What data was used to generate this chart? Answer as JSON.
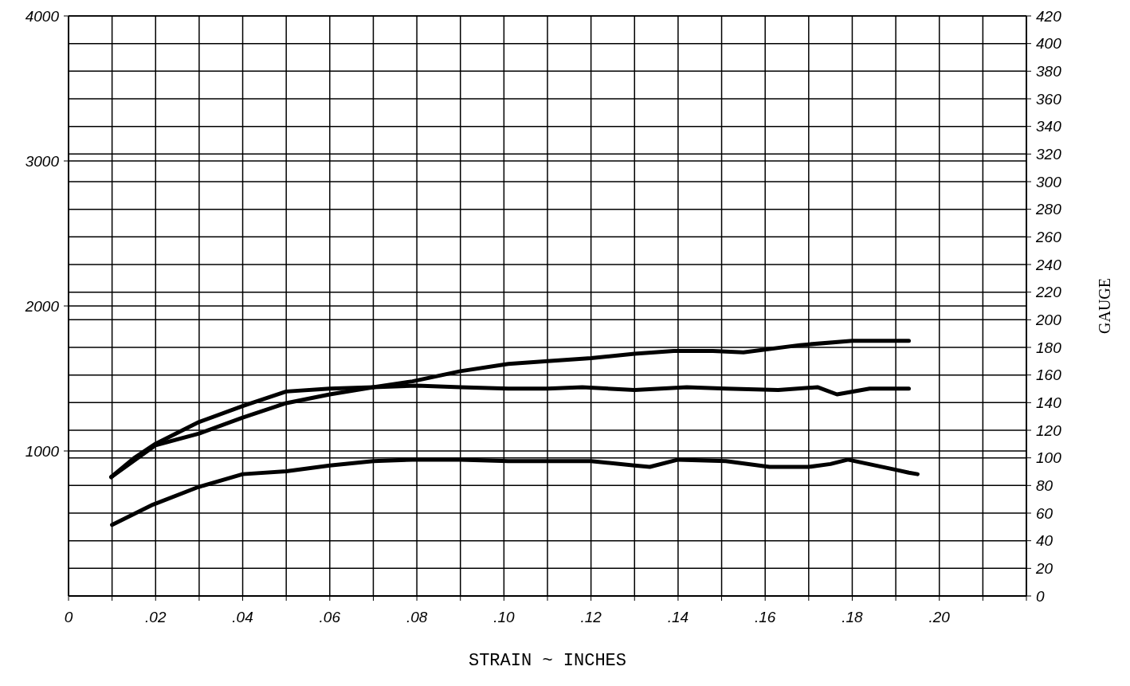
{
  "chart_data": {
    "type": "line",
    "xlabel": "STRAIN ~ INCHES",
    "y2label": "GAUGE",
    "xlim": [
      0,
      0.22
    ],
    "xticks": [
      {
        "value": 0,
        "label": "0"
      },
      {
        "value": 0.01,
        "label": null
      },
      {
        "value": 0.02,
        "label": ".02"
      },
      {
        "value": 0.03,
        "label": null
      },
      {
        "value": 0.04,
        "label": ".04"
      },
      {
        "value": 0.05,
        "label": null
      },
      {
        "value": 0.06,
        "label": ".06"
      },
      {
        "value": 0.07,
        "label": null
      },
      {
        "value": 0.08,
        "label": ".08"
      },
      {
        "value": 0.09,
        "label": null
      },
      {
        "value": 0.1,
        "label": ".10"
      },
      {
        "value": 0.11,
        "label": null
      },
      {
        "value": 0.12,
        "label": ".12"
      },
      {
        "value": 0.13,
        "label": null
      },
      {
        "value": 0.14,
        "label": ".14"
      },
      {
        "value": 0.15,
        "label": null
      },
      {
        "value": 0.16,
        "label": ".16"
      },
      {
        "value": 0.17,
        "label": null
      },
      {
        "value": 0.18,
        "label": ".18"
      },
      {
        "value": 0.19,
        "label": null
      },
      {
        "value": 0.2,
        "label": ".20"
      },
      {
        "value": 0.21,
        "label": null
      },
      {
        "value": 0.22,
        "label": null
      }
    ],
    "ylim": [
      0,
      4000
    ],
    "yticks": [
      1000,
      2000,
      3000,
      4000
    ],
    "y2lim": [
      0,
      420
    ],
    "y2ticks": [
      0,
      20,
      40,
      60,
      80,
      100,
      120,
      140,
      160,
      180,
      200,
      220,
      240,
      260,
      280,
      300,
      320,
      340,
      360,
      380,
      400,
      420
    ],
    "grid": true,
    "legend": false,
    "marker": "none",
    "line_style": "solid",
    "series": [
      {
        "color": "#000000",
        "x": [
          0.0098,
          0.02,
          0.03,
          0.04,
          0.05,
          0.06,
          0.07,
          0.079,
          0.09,
          0.101,
          0.11,
          0.12,
          0.13,
          0.139,
          0.148,
          0.155,
          0.168,
          0.18,
          0.193
        ],
        "values": [
          820,
          1040,
          1120,
          1230,
          1330,
          1390,
          1440,
          1480,
          1550,
          1600,
          1620,
          1640,
          1670,
          1690,
          1690,
          1680,
          1730,
          1760,
          1760
        ]
      },
      {
        "color": "#000000",
        "x": [
          0.0098,
          0.015,
          0.02,
          0.03,
          0.04,
          0.05,
          0.06,
          0.07,
          0.08,
          0.09,
          0.101,
          0.11,
          0.118,
          0.13,
          0.142,
          0.151,
          0.163,
          0.172,
          0.1765,
          0.184,
          0.193
        ],
        "values": [
          820,
          950,
          1050,
          1200,
          1310,
          1410,
          1430,
          1440,
          1450,
          1440,
          1430,
          1430,
          1440,
          1420,
          1440,
          1430,
          1420,
          1440,
          1390,
          1430,
          1430
        ]
      },
      {
        "color": "#000000",
        "x": [
          0.01,
          0.0194,
          0.0297,
          0.04,
          0.05,
          0.06,
          0.07,
          0.079,
          0.09,
          0.101,
          0.12,
          0.13,
          0.1335,
          0.14,
          0.151,
          0.161,
          0.17,
          0.175,
          0.179,
          0.19,
          0.193,
          0.195
        ],
        "values": [
          490,
          630,
          750,
          840,
          860,
          900,
          930,
          940,
          940,
          930,
          930,
          900,
          890,
          940,
          930,
          890,
          890,
          910,
          940,
          870,
          850,
          840
        ]
      }
    ]
  }
}
